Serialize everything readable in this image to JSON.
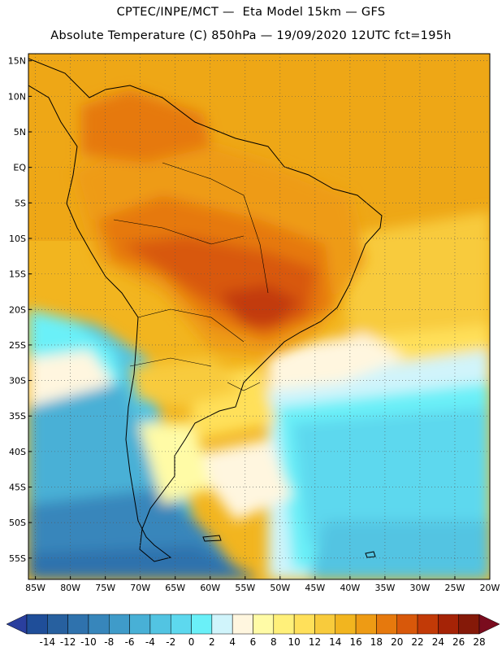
{
  "header": {
    "line1": "CPTEC/INPE/MCT —  Eta Model 15km — GFS",
    "line2": "Absolute Temperature (C) 850hPa — 19/09/2020 12UTC fct=195h"
  },
  "map": {
    "lon_range": [
      -86,
      -20
    ],
    "lat_range": [
      -58,
      16
    ],
    "lat_ticks": [
      {
        "value": 15,
        "label": "15N"
      },
      {
        "value": 10,
        "label": "10N"
      },
      {
        "value": 5,
        "label": "5N"
      },
      {
        "value": 0,
        "label": "EQ"
      },
      {
        "value": -5,
        "label": "5S"
      },
      {
        "value": -10,
        "label": "10S"
      },
      {
        "value": -15,
        "label": "15S"
      },
      {
        "value": -20,
        "label": "20S"
      },
      {
        "value": -25,
        "label": "25S"
      },
      {
        "value": -30,
        "label": "30S"
      },
      {
        "value": -35,
        "label": "35S"
      },
      {
        "value": -40,
        "label": "40S"
      },
      {
        "value": -45,
        "label": "45S"
      },
      {
        "value": -50,
        "label": "50S"
      },
      {
        "value": -55,
        "label": "55S"
      }
    ],
    "lon_ticks": [
      {
        "value": -85,
        "label": "85W"
      },
      {
        "value": -80,
        "label": "80W"
      },
      {
        "value": -75,
        "label": "75W"
      },
      {
        "value": -70,
        "label": "70W"
      },
      {
        "value": -65,
        "label": "65W"
      },
      {
        "value": -60,
        "label": "60W"
      },
      {
        "value": -55,
        "label": "55W"
      },
      {
        "value": -50,
        "label": "50W"
      },
      {
        "value": -45,
        "label": "45W"
      },
      {
        "value": -40,
        "label": "40W"
      },
      {
        "value": -35,
        "label": "35W"
      },
      {
        "value": -30,
        "label": "30W"
      },
      {
        "value": -25,
        "label": "25W"
      },
      {
        "value": -20,
        "label": "20W"
      }
    ],
    "gridlines": "dotted every 5 degrees"
  },
  "colorbar": {
    "labels": [
      "-14",
      "-12",
      "-10",
      "-8",
      "-6",
      "-4",
      "-2",
      "0",
      "2",
      "4",
      "6",
      "8",
      "10",
      "12",
      "14",
      "16",
      "18",
      "20",
      "22",
      "24",
      "26",
      "28"
    ],
    "colors": [
      "#1f4e99",
      "#27609f",
      "#2f72ad",
      "#3786bb",
      "#3f9bc9",
      "#48b0d6",
      "#52c4e2",
      "#5dd8ee",
      "#6af0f8",
      "#d0f4fb",
      "#fff6df",
      "#fffba6",
      "#fff07a",
      "#ffe05a",
      "#f8cb3c",
      "#f2b51f",
      "#ee9b14",
      "#e6790d",
      "#d8580a",
      "#c23a07",
      "#a52306",
      "#851908"
    ],
    "under_color": "#2a3f9e",
    "over_color": "#7a0c1e"
  }
}
